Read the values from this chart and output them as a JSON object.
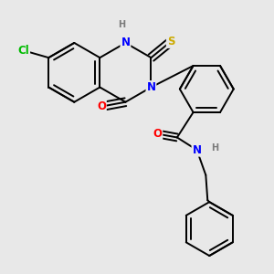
{
  "background_color": "#e8e8e8",
  "atom_colors": {
    "C": "#000000",
    "H": "#7a7a7a",
    "N": "#0000ff",
    "O": "#ff0000",
    "S": "#ccaa00",
    "Cl": "#00bb00"
  },
  "bond_color": "#000000",
  "bond_width": 1.4,
  "font_size": 8.5
}
